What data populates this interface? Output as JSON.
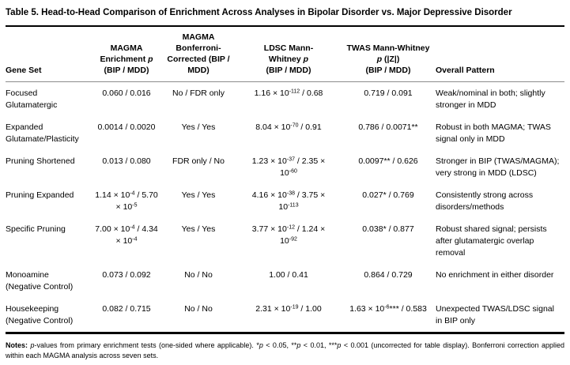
{
  "title": "Table 5. Head-to-Head Comparison of Enrichment Across Analyses in Bipolar Disorder vs. Major Depressive Disorder",
  "colors": {
    "text": "#000000",
    "heavy_rule": "#000000",
    "header_rule": "#8c8c8c",
    "background": "#ffffff"
  },
  "header": {
    "gene_set": "Gene Set",
    "magma": {
      "l1": "MAGMA",
      "l2a": "Enrichment ",
      "l2b": "p",
      "l3": "(BIP / MDD)"
    },
    "bonferroni": {
      "l1": "MAGMA",
      "l2": "Bonferroni-",
      "l3": "Corrected (BIP /",
      "l4": "MDD)"
    },
    "ldsc": {
      "l1": "LDSC Mann-",
      "l2a": "Whitney ",
      "l2b": "p",
      "l3": "(BIP / MDD)"
    },
    "twas": {
      "l1": "TWAS Mann-Whitney",
      "l2a": "p",
      "l2b": " (|Z|)",
      "l3": "(BIP / MDD)"
    },
    "overall": "Overall Pattern"
  },
  "rows": [
    {
      "gene": "Focused\nGlutamatergic",
      "magma": "0.060 / 0.016",
      "bonf": "No / FDR only",
      "ldsc": "1.16 × 10^-112^ / 0.68",
      "twas": "0.719 / 0.091",
      "overall": "Weak/nominal in both; slightly\nstronger in MDD"
    },
    {
      "gene": "Expanded\nGlutamate/Plasticity",
      "magma": "0.0014 / 0.0020",
      "bonf": "Yes / Yes",
      "ldsc": "8.04 × 10^-70^ / 0.91",
      "twas": "0.786 / 0.0071**",
      "overall": "Robust in both MAGMA; TWAS\nsignal only in MDD"
    },
    {
      "gene": "Pruning Shortened",
      "magma": "0.013 / 0.080",
      "bonf": "FDR only / No",
      "ldsc": "1.23 × 10^-37^ / 2.35 ×\n10^-60^",
      "twas": "0.0097** / 0.626",
      "overall": "Stronger in BIP (TWAS/MAGMA);\nvery strong in MDD (LDSC)"
    },
    {
      "gene": "Pruning Expanded",
      "magma": "1.14 × 10^-4^ / 5.70\n× 10^-5^",
      "bonf": "Yes / Yes",
      "ldsc": "4.16 × 10^-38^ / 3.75 ×\n10^-113^",
      "twas": "0.027* / 0.769",
      "overall": "Consistently strong across\ndisorders/methods"
    },
    {
      "gene": "Specific Pruning",
      "magma": "7.00 × 10^-4^ / 4.34\n× 10^-4^",
      "bonf": "Yes / Yes",
      "ldsc": "3.77 × 10^-12^ / 1.24 ×\n10^-92^",
      "twas": "0.038* / 0.877",
      "overall": "Robust shared signal; persists\nafter glutamatergic overlap\nremoval"
    },
    {
      "gene": "Monoamine\n(Negative Control)",
      "magma": "0.073 / 0.092",
      "bonf": "No / No",
      "ldsc": "1.00 / 0.41",
      "twas": "0.864 / 0.729",
      "overall": "No enrichment in either disorder"
    },
    {
      "gene": "Housekeeping\n(Negative Control)",
      "magma": "0.082 / 0.715",
      "bonf": "No / No",
      "ldsc": "2.31 × 10^-19^ / 1.00",
      "twas": "1.63 × 10^-6^*** / 0.583",
      "overall": "Unexpected TWAS/LDSC signal\nin BIP only"
    }
  ],
  "notes": {
    "label": "Notes:",
    "p1": "p",
    "t1": "-values from primary enrichment tests (one-sided where applicable). *",
    "p2": "p",
    "t2": " < 0.05, **",
    "p3": "p",
    "t3": " < 0.01, ***",
    "p4": "p",
    "t4": " < 0.001 (uncorrected for table display). Bonferroni correction applied within each MAGMA analysis across seven sets."
  }
}
